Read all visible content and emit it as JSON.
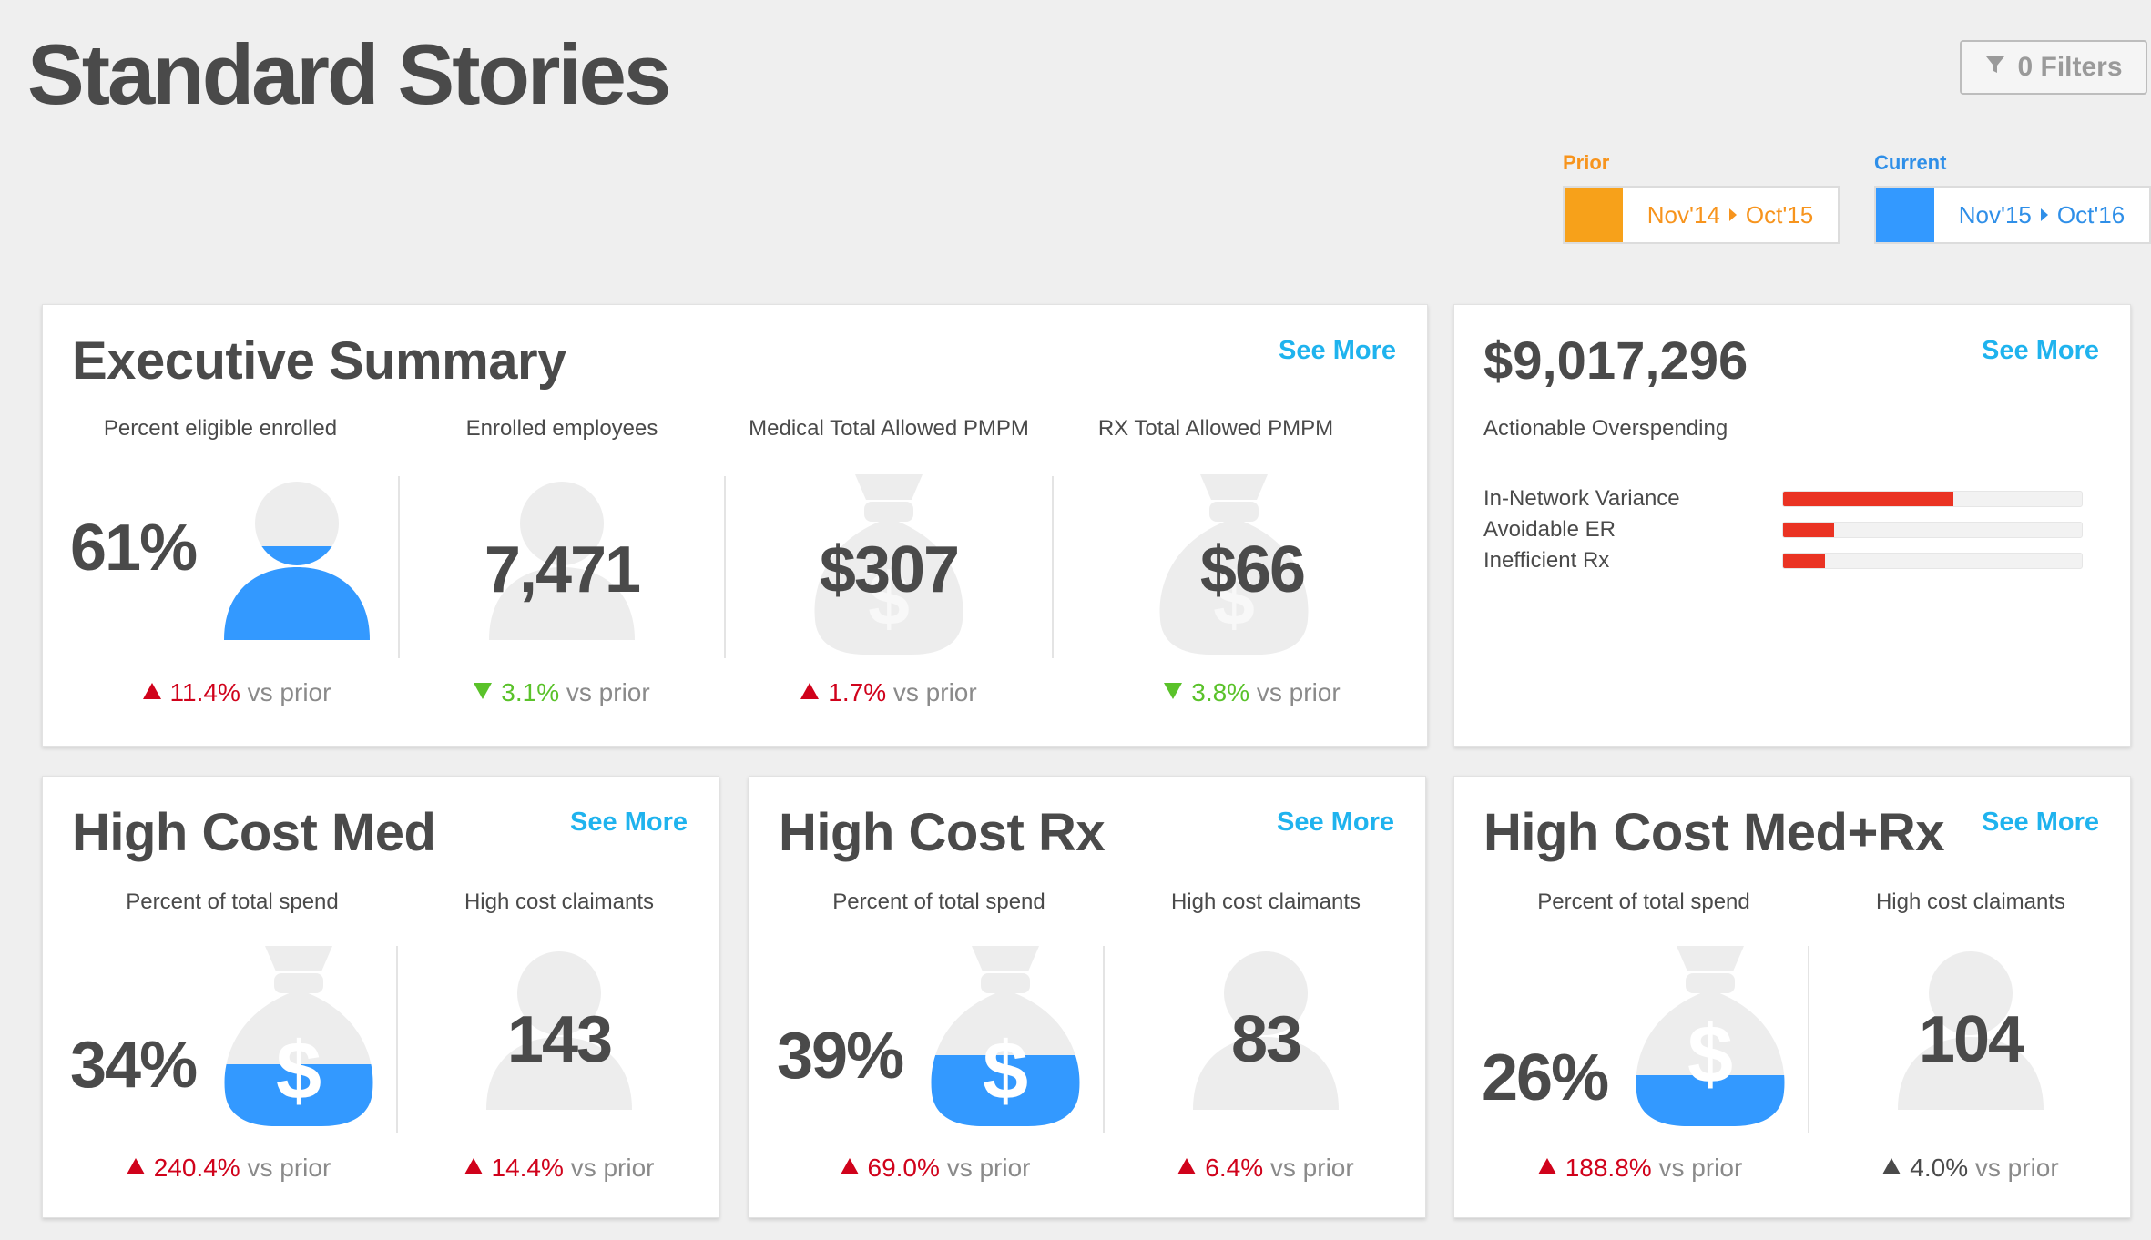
{
  "page": {
    "title": "Standard Stories"
  },
  "filters": {
    "label": "0 Filters"
  },
  "periods": {
    "prior": {
      "label": "Prior",
      "start": "Nov'14",
      "end": "Oct'15",
      "color": "#f7a11a"
    },
    "current": {
      "label": "Current",
      "start": "Nov'15",
      "end": "Oct'16",
      "color": "#3399ff"
    }
  },
  "executive_summary": {
    "title": "Executive Summary",
    "see_more": "See More",
    "metrics": [
      {
        "label": "Percent eligible enrolled",
        "value": "61%",
        "fill_fraction": 0.61,
        "icon": "person-icon",
        "change": "11.4%",
        "direction": "up",
        "vs": "vs prior"
      },
      {
        "label": "Enrolled employees",
        "value": "7,471",
        "icon": "person-icon",
        "change": "3.1%",
        "direction": "down",
        "vs": "vs prior"
      },
      {
        "label": "Medical Total Allowed PMPM",
        "value": "$307",
        "icon": "money-bag-icon",
        "change": "1.7%",
        "direction": "up",
        "vs": "vs prior"
      },
      {
        "label": "RX Total Allowed PMPM",
        "value": "$66",
        "icon": "money-bag-icon",
        "change": "3.8%",
        "direction": "down",
        "vs": "vs prior"
      }
    ]
  },
  "overspending": {
    "amount": "$9,017,296",
    "label": "Actionable Overspending",
    "see_more": "See More",
    "rows": [
      {
        "label": "In-Network Variance",
        "fraction": 0.57
      },
      {
        "label": "Avoidable ER",
        "fraction": 0.17
      },
      {
        "label": "Inefficient Rx",
        "fraction": 0.14
      }
    ]
  },
  "high_cost_med": {
    "title": "High Cost Med",
    "see_more": "See More",
    "spend": {
      "label": "Percent of total spend",
      "value": "34%",
      "fill_fraction": 0.34,
      "change": "240.4%",
      "direction": "up",
      "vs": "vs prior"
    },
    "claimants": {
      "label": "High cost claimants",
      "value": "143",
      "change": "14.4%",
      "direction": "up",
      "vs": "vs prior"
    }
  },
  "high_cost_rx": {
    "title": "High Cost Rx",
    "see_more": "See More",
    "spend": {
      "label": "Percent of total spend",
      "value": "39%",
      "fill_fraction": 0.39,
      "change": "69.0%",
      "direction": "up",
      "vs": "vs prior"
    },
    "claimants": {
      "label": "High cost claimants",
      "value": "83",
      "change": "6.4%",
      "direction": "up",
      "vs": "vs prior"
    }
  },
  "high_cost_medrx": {
    "title": "High Cost Med+Rx",
    "see_more": "See More",
    "spend": {
      "label": "Percent of total spend",
      "value": "26%",
      "fill_fraction": 0.26,
      "change": "188.8%",
      "direction": "up",
      "vs": "vs prior"
    },
    "claimants": {
      "label": "High cost claimants",
      "value": "104",
      "change": "4.0%",
      "direction": "up-neutral",
      "vs": "vs prior"
    }
  },
  "colors": {
    "accent": "#1fb3ee",
    "fill_blue": "#3399ff",
    "icon_gray": "#ededed",
    "increase": "#d0021b",
    "decrease": "#5ac22a",
    "overspend_bar": "#ea3323"
  }
}
